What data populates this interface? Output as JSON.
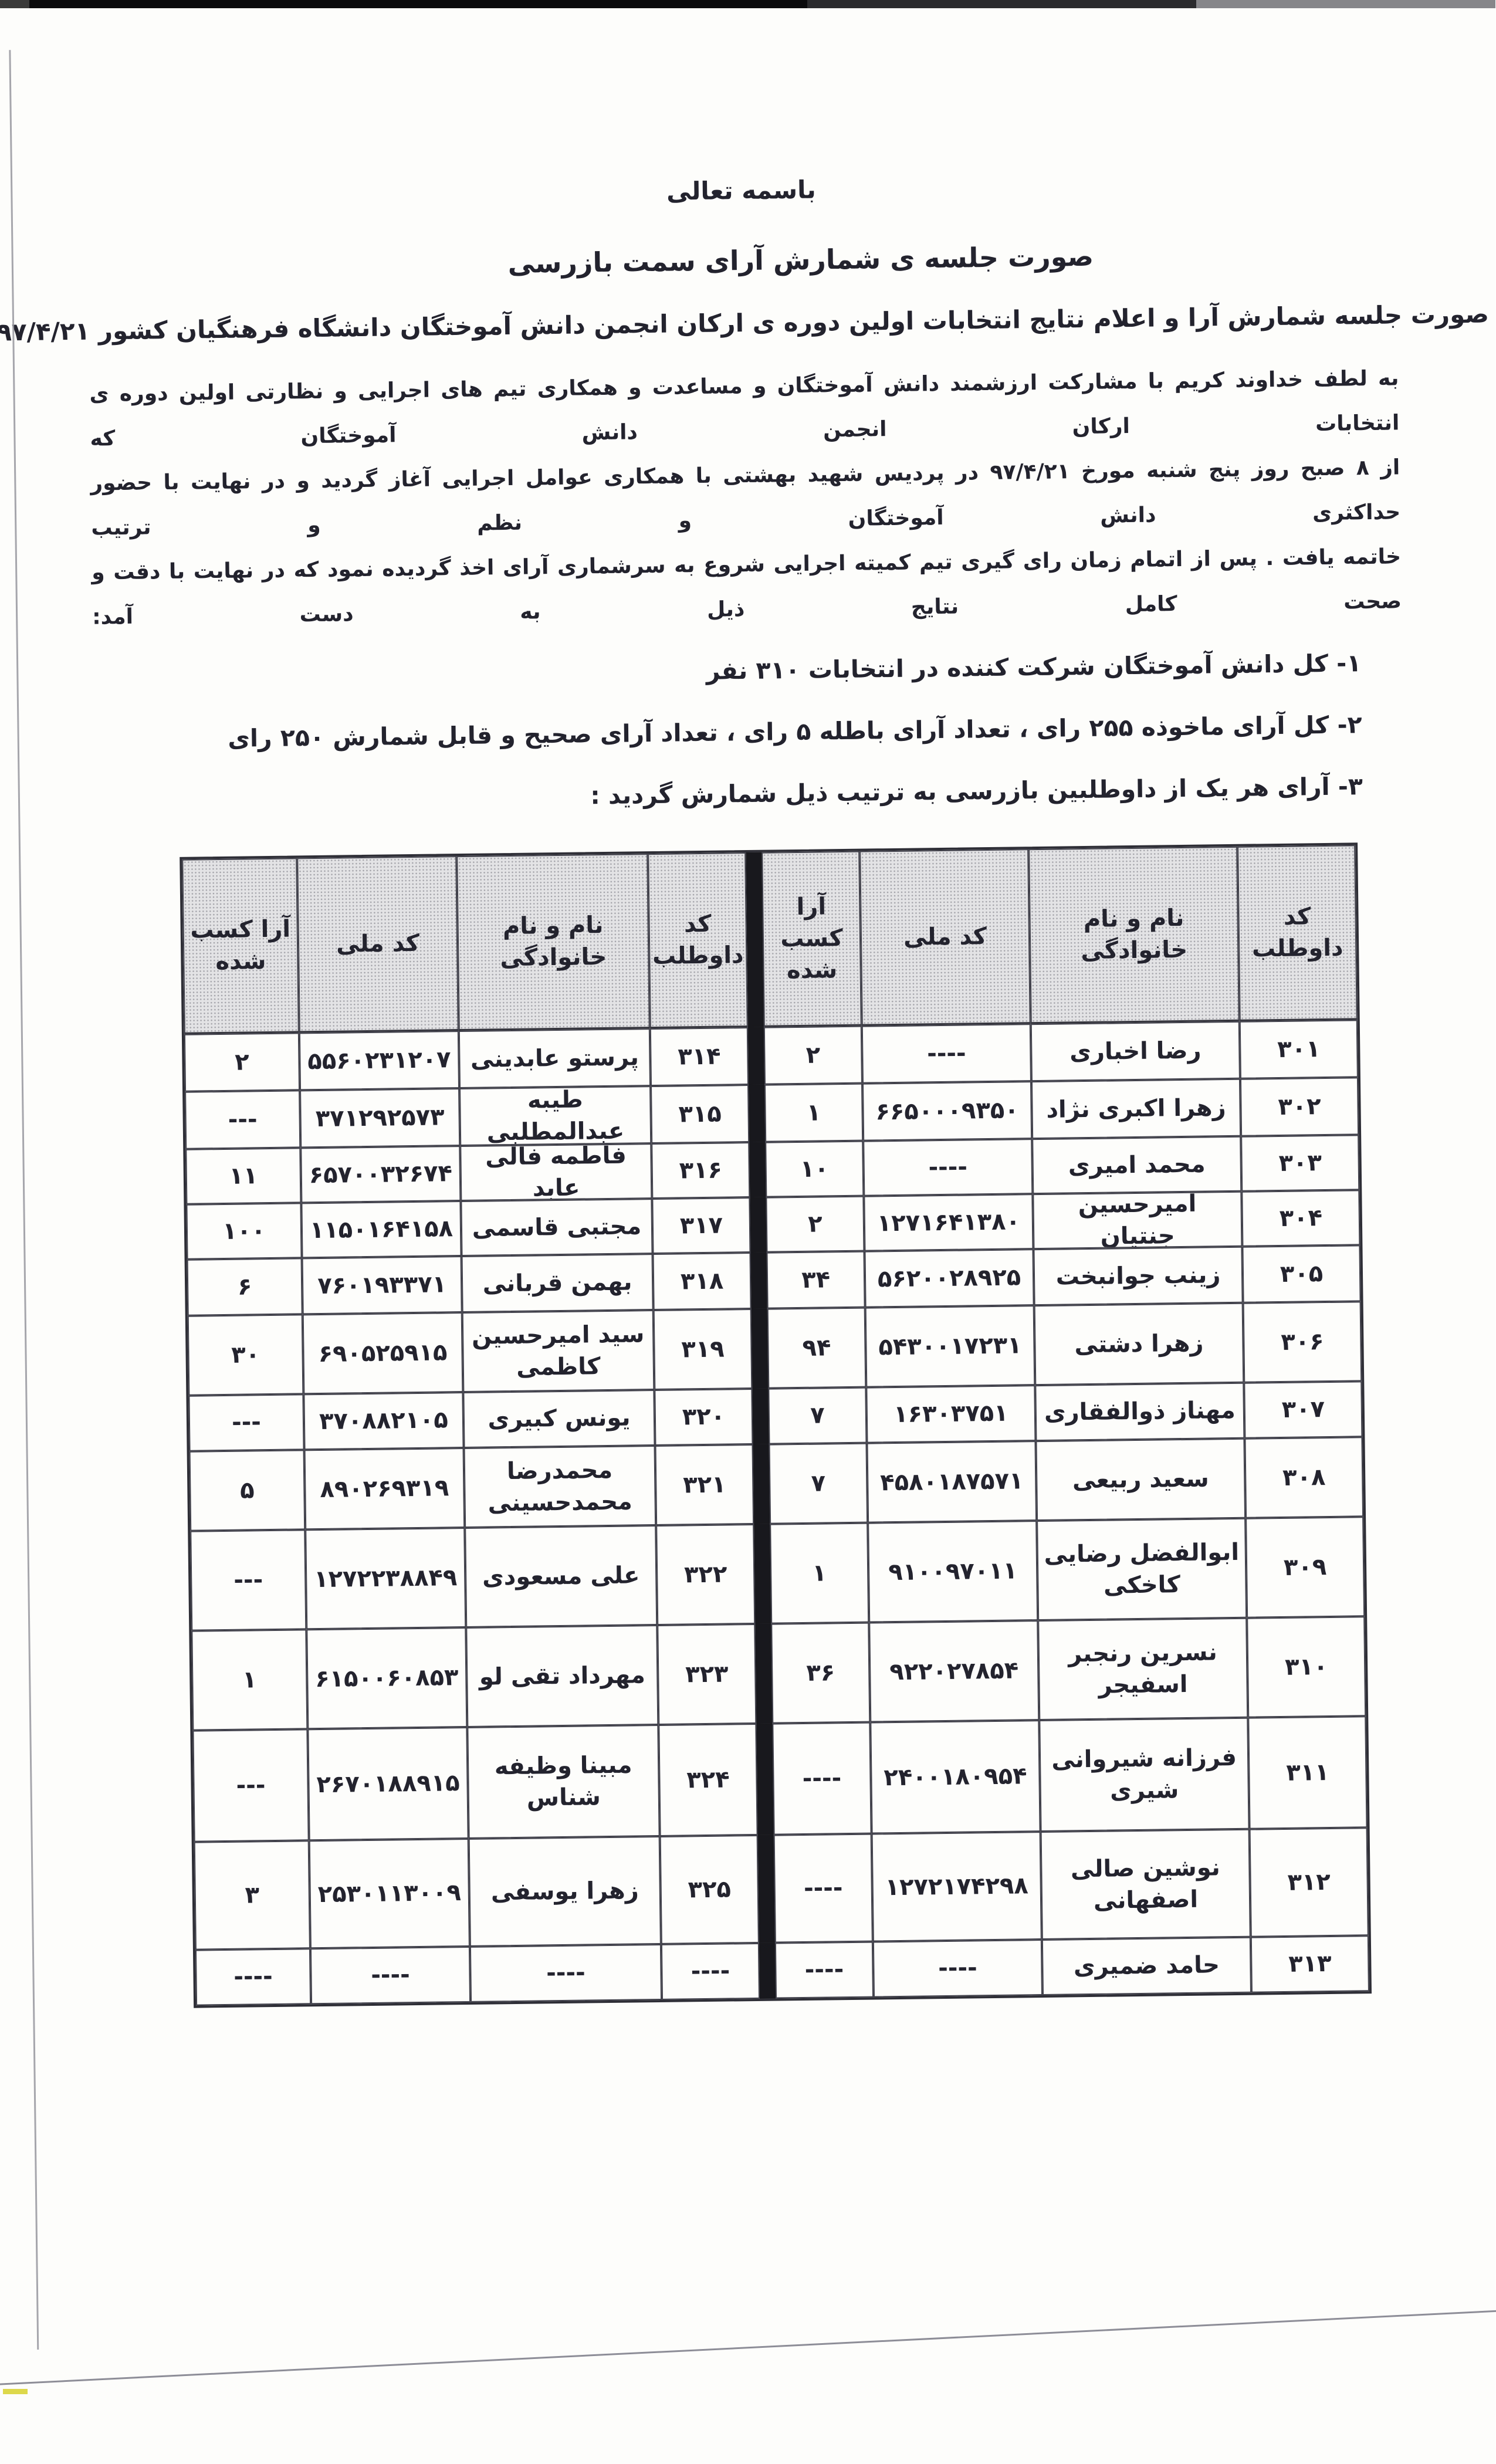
{
  "header": {
    "basmala": "باسمه تعالی",
    "title": "صورت جلسه ی شمارش آرای سمت بازرسی",
    "subtitle": "صورت جلسه شمارش آرا و اعلام نتایج انتخابات اولین دوره ی ارکان انجمن دانش آموختگان دانشگاه فرهنگیان کشور ۹۷/۴/۲۱"
  },
  "body_paragraph": {
    "line1": "به لطف خداوند کریم با مشارکت ارزشمند دانش آموختگان و مساعدت و همکاری تیم های اجرایی و نظارتی اولین دوره ی انتخابات ارکان انجمن دانش آموختگان که",
    "line2": "از ۸ صبح روز پنج شنبه مورخ ۹۷/۴/۲۱ در پردیس شهید بهشتی با همکاری عوامل اجرایی آغاز گردید و در نهایت با حضور حداکثری دانش آموختگان و نظم و ترتیب",
    "line3": "خاتمه یافت . پس از اتمام زمان رای گیری تیم کمیته اجرایی شروع به سرشماری آرای اخذ گردیده نمود که در نهایت با دقت و صحت کامل نتایج ذیل به دست آمد:"
  },
  "summary_items": [
    "۱-  کل دانش آموختگان شرکت کننده در انتخابات ۳۱۰ نفر",
    "۲-  کل آرای ماخوذه ۲۵۵ رای ، تعداد آرای باطله ۵ رای ، تعداد آرای صحیح و قابل شمارش ۲۵۰ رای",
    "۳-  آرای هر یک از داوطلبین بازرسی به ترتیب ذیل شمارش گردید :"
  ],
  "table": {
    "column_headers": [
      "کد داوطلب",
      "نام و نام خانوادگی",
      "کد ملی",
      "آرا کسب شده"
    ],
    "rows": [
      {
        "right": {
          "code": "۳۰۱",
          "name": "رضا اخباری",
          "national_id": "----",
          "votes": "۲"
        },
        "left": {
          "code": "۳۱۴",
          "name": "پرستو عابدینی",
          "national_id": "۵۵۶۰۲۳۱۲۰۷",
          "votes": "۲"
        }
      },
      {
        "right": {
          "code": "۳۰۲",
          "name": "زهرا اکبری نژاد",
          "national_id": "۶۶۵۰۰۰۹۳۵۰",
          "votes": "۱"
        },
        "left": {
          "code": "۳۱۵",
          "name": "طیبه عبدالمطلبی",
          "national_id": "۳۷۱۲۹۲۵۷۳",
          "votes": "---"
        }
      },
      {
        "right": {
          "code": "۳۰۳",
          "name": "محمد امیری",
          "national_id": "----",
          "votes": "۱۰"
        },
        "left": {
          "code": "۳۱۶",
          "name": "فاطمه فالی عابد",
          "national_id": "۶۵۷۰۰۳۲۶۷۴",
          "votes": "۱۱"
        }
      },
      {
        "right": {
          "code": "۳۰۴",
          "name": "امیرحسین جنتیان",
          "national_id": "۱۲۷۱۶۴۱۳۸۰",
          "votes": "۲"
        },
        "left": {
          "code": "۳۱۷",
          "name": "مجتبی قاسمی",
          "national_id": "۱۱۵۰۱۶۴۱۵۸",
          "votes": "۱۰۰"
        }
      },
      {
        "right": {
          "code": "۳۰۵",
          "name": "زینب جوانبخت",
          "national_id": "۵۶۲۰۰۲۸۹۲۵",
          "votes": "۳۴"
        },
        "left": {
          "code": "۳۱۸",
          "name": "بهمن قربانی",
          "national_id": "۷۶۰۱۹۳۳۷۱",
          "votes": "۶"
        }
      },
      {
        "right": {
          "code": "۳۰۶",
          "name": "زهرا دشتی",
          "national_id": "۵۴۳۰۰۱۷۲۳۱",
          "votes": "۹۴"
        },
        "left": {
          "code": "۳۱۹",
          "name": "سید امیرحسین کاظمی",
          "national_id": "۶۹۰۵۲۵۹۱۵",
          "votes": "۳۰"
        }
      },
      {
        "right": {
          "code": "۳۰۷",
          "name": "مهناز ذوالفقاری",
          "national_id": "۱۶۳۰۳۷۵۱",
          "votes": "۷"
        },
        "left": {
          "code": "۳۲۰",
          "name": "یونس کبیری",
          "national_id": "۳۷۰۸۸۲۱۰۵",
          "votes": "---"
        }
      },
      {
        "right": {
          "code": "۳۰۸",
          "name": "سعید ربیعی",
          "national_id": "۴۵۸۰۱۸۷۵۷۱",
          "votes": "۷"
        },
        "left": {
          "code": "۳۲۱",
          "name": "محمدرضا محمدحسینی",
          "national_id": "۸۹۰۲۶۹۳۱۹",
          "votes": "۵"
        }
      },
      {
        "right": {
          "code": "۳۰۹",
          "name": "ابوالفضل رضایی کاخکی",
          "national_id": "۹۱۰۰۹۷۰۱۱",
          "votes": "۱"
        },
        "left": {
          "code": "۳۲۲",
          "name": "علی مسعودی",
          "national_id": "۱۲۷۲۲۳۸۸۴۹",
          "votes": "---"
        }
      },
      {
        "right": {
          "code": "۳۱۰",
          "name": "نسرین رنجبر اسفیجر",
          "national_id": "۹۲۲۰۲۷۸۵۴",
          "votes": "۳۶"
        },
        "left": {
          "code": "۳۲۳",
          "name": "مهرداد تقی لو",
          "national_id": "۶۱۵۰۰۶۰۸۵۳",
          "votes": "۱"
        }
      },
      {
        "right": {
          "code": "۳۱۱",
          "name": "فرزانه شیروانی شیری",
          "national_id": "۲۴۰۰۱۸۰۹۵۴",
          "votes": "----"
        },
        "left": {
          "code": "۳۲۴",
          "name": "مبینا وظیفه شناس",
          "national_id": "۲۶۷۰۱۸۸۹۱۵",
          "votes": "---"
        }
      },
      {
        "right": {
          "code": "۳۱۲",
          "name": "نوشین صالی اصفهانی",
          "national_id": "۱۲۷۲۱۷۴۲۹۸",
          "votes": "----"
        },
        "left": {
          "code": "۳۲۵",
          "name": "زهرا یوسفی",
          "national_id": "۲۵۳۰۱۱۳۰۰۹",
          "votes": "۳"
        }
      },
      {
        "right": {
          "code": "۳۱۳",
          "name": "حامد ضمیری",
          "national_id": "----",
          "votes": "----"
        },
        "left": {
          "code": "----",
          "name": "----",
          "national_id": "----",
          "votes": "----"
        }
      }
    ]
  }
}
